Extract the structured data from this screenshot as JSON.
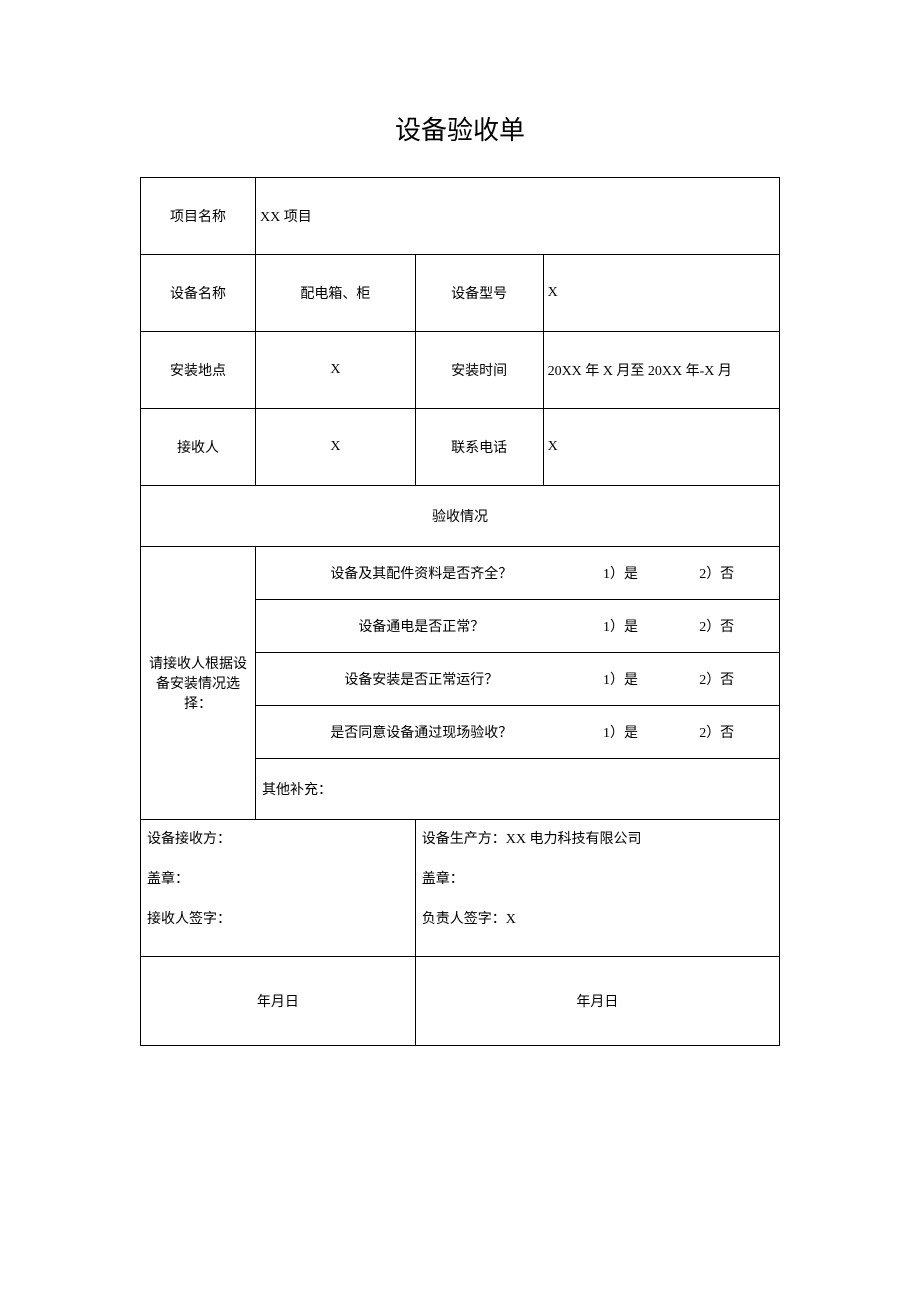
{
  "title": "设备验收单",
  "labels": {
    "project_name": "项目名称",
    "equipment_name": "设备名称",
    "equipment_model": "设备型号",
    "install_location": "安装地点",
    "install_time": "安装时间",
    "receiver": "接收人",
    "phone": "联系电话",
    "acceptance_status": "验收情况",
    "instruction": "请接收人根据设备安装情况选择：",
    "supplement": "其他补充：",
    "receiver_party": "设备接收方：",
    "producer_party": "设备生产方：",
    "stamp": "盖章：",
    "receiver_sign": "接收人签字：",
    "responsible_sign": "负责人签字：",
    "date_placeholder": "年月日"
  },
  "values": {
    "project_name": "XX 项目",
    "equipment_name": "配电箱、柜",
    "equipment_model": "X",
    "install_location": "X",
    "install_time": "20XX 年 X 月至 20XX 年-X 月",
    "receiver": "X",
    "phone": "X",
    "producer_company": "XX 电力科技有限公司",
    "responsible_person": "X"
  },
  "questions": [
    {
      "text": "设备及其配件资料是否齐全？",
      "opt1": "1）是",
      "opt2": "2）否"
    },
    {
      "text": "设备通电是否正常？",
      "opt1": "1）是",
      "opt2": "2）否"
    },
    {
      "text": "设备安装是否正常运行？",
      "opt1": "1）是",
      "opt2": "2）否"
    },
    {
      "text": "是否同意设备通过现场验收？",
      "opt1": "1）是",
      "opt2": "2）否"
    }
  ],
  "style": {
    "background_color": "#ffffff",
    "border_color": "#000000",
    "text_color": "#000000",
    "title_fontsize": 26,
    "body_fontsize": 14,
    "font_family": "SimSun"
  }
}
